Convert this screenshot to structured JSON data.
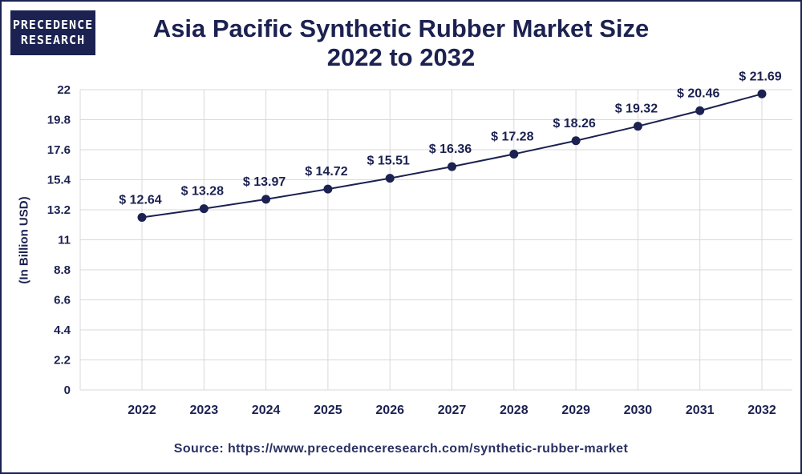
{
  "logo": {
    "line1": "PRECEDENCE",
    "line2": "RESEARCH"
  },
  "title": {
    "line1": "Asia Pacific Synthetic Rubber Market Size",
    "line2": "2022 to 2032"
  },
  "source": "Source: https://www.precedenceresearch.com/synthetic-rubber-market",
  "colors": {
    "navy": "#1b2150",
    "grid": "#d9d9d9",
    "text": "#1b2150"
  },
  "chart_data": {
    "type": "line",
    "title": "Asia Pacific Synthetic Rubber Market Size 2022 to 2032",
    "xlabel": "",
    "ylabel": "(In Billion USD)",
    "categories": [
      "2022",
      "2023",
      "2024",
      "2025",
      "2026",
      "2027",
      "2028",
      "2029",
      "2030",
      "2031",
      "2032"
    ],
    "values": [
      12.64,
      13.28,
      13.97,
      14.72,
      15.51,
      16.36,
      17.28,
      18.26,
      19.32,
      20.46,
      21.69
    ],
    "data_labels": [
      "$ 12.64",
      "$ 13.28",
      "$ 13.97",
      "$ 14.72",
      "$ 15.51",
      "$ 16.36",
      "$ 17.28",
      "$ 18.26",
      "$ 19.32",
      "$ 20.46",
      "$ 21.69"
    ],
    "yticks": [
      "0",
      "2.2",
      "4.4",
      "6.6",
      "8.8",
      "11",
      "13.2",
      "15.4",
      "17.6",
      "19.8",
      "22"
    ],
    "ylim": [
      0,
      22
    ],
    "grid": true,
    "legend": "none"
  }
}
